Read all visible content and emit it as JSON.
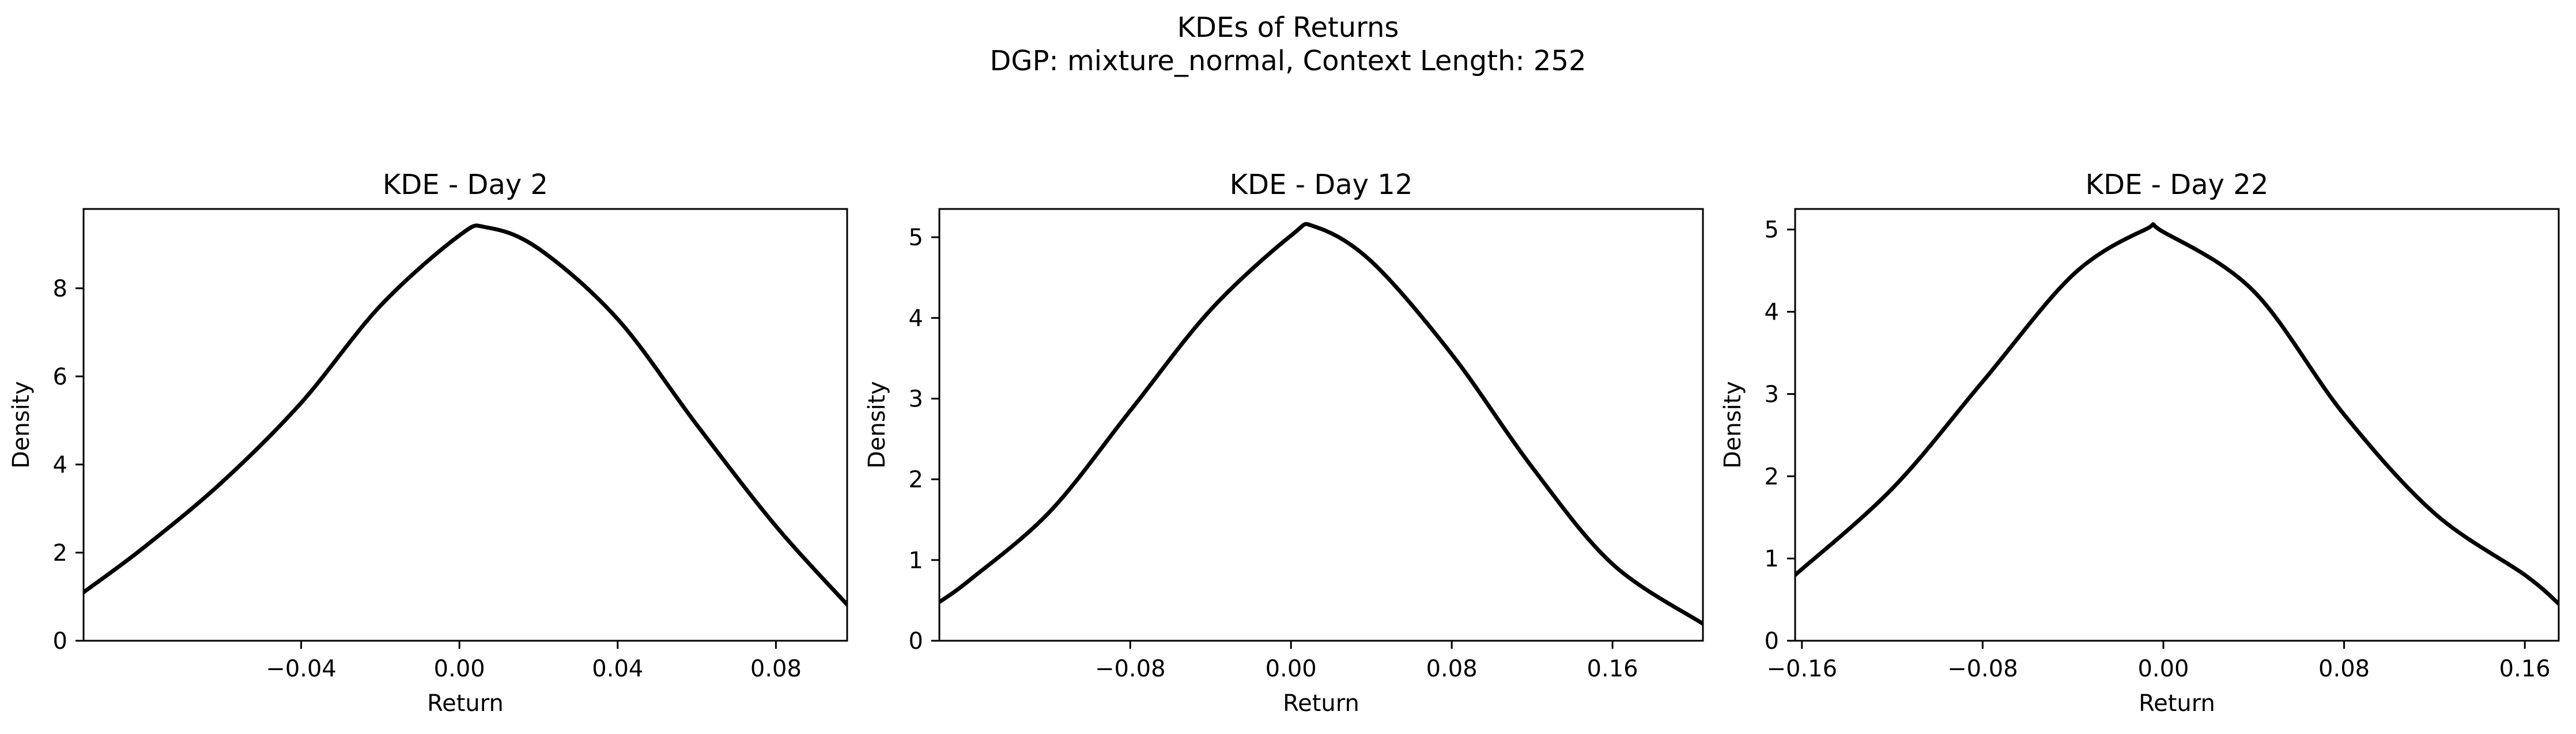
{
  "figure": {
    "title": "KDEs of Returns",
    "subtitle": "DGP: mixture_normal, Context Length: 252"
  },
  "chart_data": [
    {
      "type": "line",
      "title": "KDE - Day 2",
      "xlabel": "Return",
      "ylabel": "Density",
      "xlim": [
        -0.095,
        0.098
      ],
      "ylim": [
        0,
        9.8
      ],
      "xticks": [
        -0.04,
        0.0,
        0.04,
        0.08
      ],
      "xtick_labels": [
        "−0.04",
        "0.00",
        "0.04",
        "0.08"
      ],
      "yticks": [
        0,
        2,
        4,
        6,
        8
      ],
      "ytick_labels": [
        "0",
        "2",
        "4",
        "6",
        "8"
      ],
      "grid": false,
      "series": [
        {
          "color": "#000000",
          "x": [
            -0.095,
            -0.08,
            -0.06,
            -0.04,
            -0.02,
            0.0,
            0.007,
            0.02,
            0.04,
            0.06,
            0.08,
            0.098
          ],
          "y": [
            1.1,
            2.1,
            3.6,
            5.4,
            7.6,
            9.2,
            9.38,
            8.9,
            7.3,
            4.9,
            2.6,
            0.82
          ]
        }
      ]
    },
    {
      "type": "line",
      "title": "KDE - Day 12",
      "xlabel": "Return",
      "ylabel": "Density",
      "xlim": [
        -0.175,
        0.205
      ],
      "ylim": [
        0,
        5.35
      ],
      "xticks": [
        -0.08,
        0.0,
        0.08,
        0.16
      ],
      "xtick_labels": [
        "−0.08",
        "0.00",
        "0.08",
        "0.16"
      ],
      "yticks": [
        0,
        1,
        2,
        3,
        4,
        5
      ],
      "ytick_labels": [
        "0",
        "1",
        "2",
        "3",
        "4",
        "5"
      ],
      "grid": false,
      "series": [
        {
          "color": "#000000",
          "x": [
            -0.175,
            -0.16,
            -0.12,
            -0.08,
            -0.04,
            0.0,
            0.012,
            0.04,
            0.08,
            0.12,
            0.16,
            0.205
          ],
          "y": [
            0.48,
            0.75,
            1.6,
            2.85,
            4.1,
            5.02,
            5.13,
            4.7,
            3.55,
            2.15,
            0.95,
            0.21
          ]
        }
      ]
    },
    {
      "type": "line",
      "title": "KDE - Day 22",
      "xlabel": "Return",
      "ylabel": "Density",
      "xlim": [
        -0.163,
        0.175
      ],
      "ylim": [
        0,
        5.25
      ],
      "xticks": [
        -0.16,
        -0.08,
        0.0,
        0.08,
        0.16
      ],
      "xtick_labels": [
        "−0.16",
        "−0.08",
        "0.00",
        "0.08",
        "0.16"
      ],
      "yticks": [
        0,
        1,
        2,
        3,
        4,
        5
      ],
      "ytick_labels": [
        "0",
        "1",
        "2",
        "3",
        "4",
        "5"
      ],
      "grid": false,
      "series": [
        {
          "color": "#000000",
          "x": [
            -0.163,
            -0.12,
            -0.08,
            -0.04,
            -0.008,
            0.0,
            0.04,
            0.08,
            0.12,
            0.16,
            0.175
          ],
          "y": [
            0.8,
            1.85,
            3.15,
            4.45,
            5.0,
            4.97,
            4.25,
            2.75,
            1.55,
            0.8,
            0.45
          ]
        }
      ]
    }
  ]
}
